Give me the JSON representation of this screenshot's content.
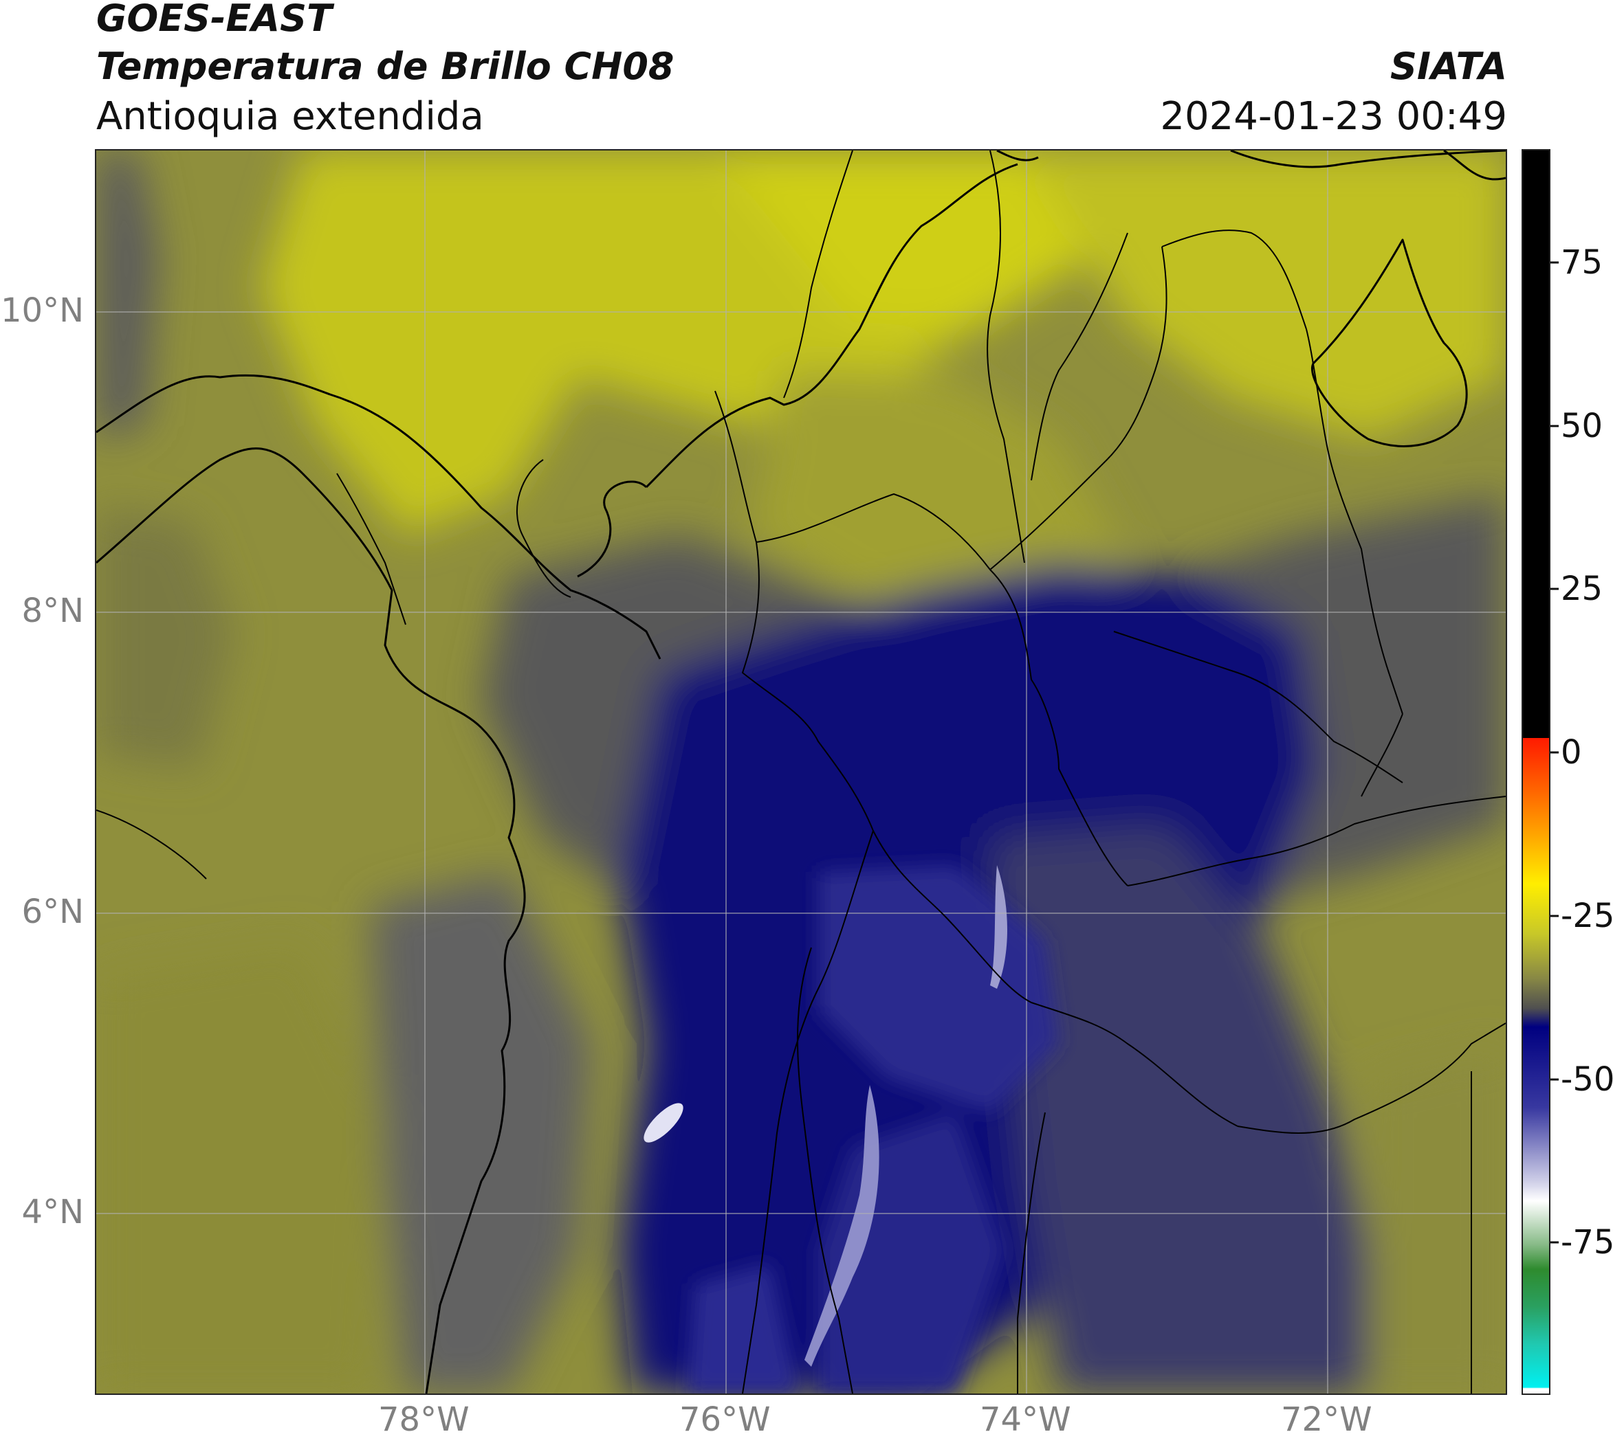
{
  "header": {
    "satellite": "GOES-EAST",
    "product": "Temperatura de Brillo CH08",
    "region": "Antioquia extendida",
    "organization": "SIATA",
    "datetime": "2024-01-23 00:49"
  },
  "map": {
    "lat_ticks": [
      "10°N",
      "8°N",
      "6°N",
      "4°N"
    ],
    "lon_ticks": [
      "78°W",
      "76°W",
      "74°W",
      "72°W"
    ],
    "colors": {
      "warm_dry": "#b5b52a",
      "bright_yellow": "#cccc18",
      "olive": "#8a8a3a",
      "gray": "#5a5a5a",
      "navy": "#0a0a7a",
      "purple_blue": "#2a2a90",
      "light": "#c8c8e8"
    }
  },
  "colorbar": {
    "ticks": [
      "75",
      "50",
      "25",
      "0",
      "-25",
      "-50",
      "-75"
    ],
    "colors": {
      "black": "#000000",
      "red": "#ff0000",
      "orange": "#ff8c00",
      "yellow": "#ffff00",
      "olive": "#a0a040",
      "gray": "#505050",
      "navy": "#000080",
      "white": "#ffffff",
      "green": "#2e8b2e",
      "teal": "#20c0a0",
      "cyan": "#00e0e0"
    }
  }
}
